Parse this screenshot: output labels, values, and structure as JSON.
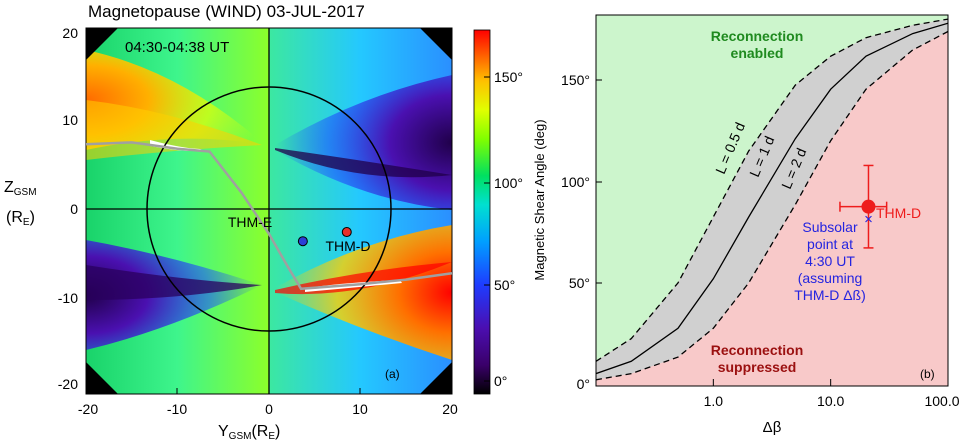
{
  "panel_a": {
    "title": "Magnetopause (WIND) 03-JUL-2017",
    "time_range": "04:30-04:38 UT",
    "panel_label": "(a)",
    "x_label_main": "Y",
    "x_label_sub": "GSM",
    "x_label_unit": "(R",
    "x_label_unit_sub": "E",
    "x_label_close": ")",
    "y_label_main": "Z",
    "y_label_sub": "GSM",
    "y_label_unit": "(R",
    "y_label_unit_sub": "E",
    "y_label_close": ")",
    "x_ticks": [
      "-20",
      "-10",
      "0",
      "10",
      "20"
    ],
    "y_ticks": [
      "20",
      "10",
      "0",
      "-10",
      "-20"
    ],
    "colorbar_ticks": [
      "150°",
      "100°",
      "50°",
      "0°"
    ],
    "colorbar_range": [
      0,
      180
    ],
    "colors": {
      "scale": [
        "#000000",
        "#3a006a",
        "#4b0eb0",
        "#1e3cff",
        "#00a0ff",
        "#00e0d0",
        "#00e060",
        "#80ff00",
        "#e0ff00",
        "#ffc000",
        "#ff6000",
        "#ff0000"
      ],
      "spacecraft_e": "#2b3fd6",
      "spacecraft_d": "#e8302a",
      "trace": "#a0a0a0"
    }
  },
  "panel_b": {
    "panel_label": "(b)",
    "y_label": "Magnetic Shear Angle (deg)",
    "x_label": "Δβ",
    "y_ticks": [
      "0°",
      "50°",
      "100°",
      "150°"
    ],
    "x_ticks": [
      "1.0",
      "10.0",
      "100.0"
    ],
    "region_enabled_1": "Reconnection",
    "region_enabled_2": "enabled",
    "region_suppressed_1": "Reconnection",
    "region_suppressed_2": "suppressed",
    "curve_labels": [
      "L = 0.5 d",
      "L = 1 d",
      "L = 2 d"
    ],
    "thmd_label": "THM-D",
    "subsolar_lines": [
      "Subsolar",
      "point at",
      "4:30 UT",
      "(assuming",
      "THM-D Δß)"
    ],
    "colors": {
      "enabled_bg": "#ccf5cc",
      "suppressed_bg": "#f8c9c9",
      "band": "#d0d0d0",
      "enabled_text": "#1f8a1f",
      "suppressed_text": "#9b1010",
      "thmd": "#ee1c1c",
      "subsolar": "#2424e0"
    }
  },
  "chart_data": [
    {
      "type": "heatmap",
      "title": "Magnetopause (WIND) 03-JUL-2017",
      "xlabel": "YGSM(RE)",
      "ylabel": "ZGSM (RE)",
      "xlim": [
        -20,
        20
      ],
      "ylim": [
        -20,
        20
      ],
      "colorbar": {
        "min": 0,
        "max": 180,
        "unit": "°"
      },
      "spacecraft": [
        {
          "name": "THM-E",
          "y": 3.7,
          "z": -3.3
        },
        {
          "name": "THM-D",
          "y": 8.5,
          "z": -2.3
        }
      ],
      "magnetopause_circle_radius": 13.3,
      "trace_points": [
        [
          -20,
          7.3
        ],
        [
          -15,
          7.5
        ],
        [
          -10,
          6.8
        ],
        [
          -6.5,
          6.5
        ],
        [
          -3,
          2
        ],
        [
          0,
          -2.5
        ],
        [
          2,
          -6
        ],
        [
          3.5,
          -8.5
        ],
        [
          10,
          -8
        ],
        [
          15,
          -7.5
        ],
        [
          20,
          -6.8
        ]
      ]
    },
    {
      "type": "line",
      "xlabel": "Δβ",
      "ylabel": "Magnetic Shear Angle (deg)",
      "xscale": "log",
      "xlim": [
        0.1,
        100
      ],
      "ylim": [
        0,
        180
      ],
      "x": [
        0.1,
        0.2,
        0.5,
        1,
        2,
        5,
        10,
        20,
        50,
        100
      ],
      "series": [
        {
          "name": "L = 0.5 d",
          "values": [
            12,
            23,
            50,
            82,
            114,
            146,
            160,
            169,
            175,
            178
          ]
        },
        {
          "name": "L = 1 d",
          "values": [
            6,
            12,
            28,
            52,
            82,
            120,
            144,
            160,
            171,
            176
          ]
        },
        {
          "name": "L = 2 d",
          "values": [
            3,
            6,
            14,
            28,
            50,
            88,
            119,
            144,
            163,
            172
          ]
        }
      ],
      "points": [
        {
          "name": "THM-D",
          "x": 21,
          "y": 87,
          "x_err": [
            12,
            30
          ],
          "y_err": [
            67,
            107
          ]
        },
        {
          "name": "Subsolar point at 4:30 UT",
          "x": 21,
          "y": 81
        }
      ]
    }
  ]
}
